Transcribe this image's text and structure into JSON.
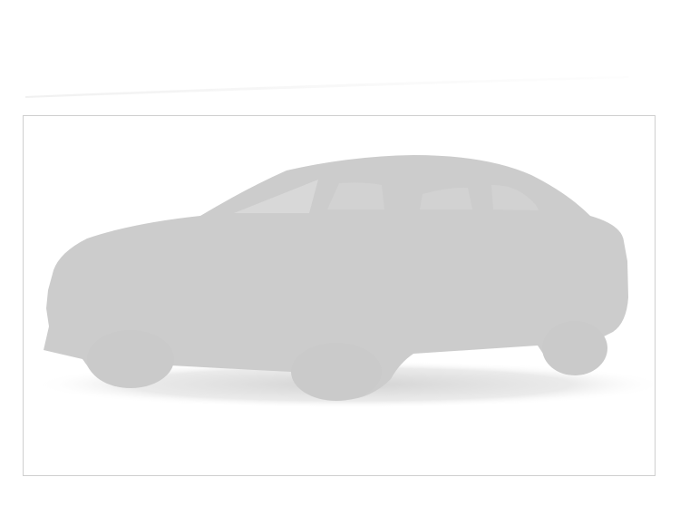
{
  "vehicle_image": {
    "kind": "placeholder-silhouette",
    "subject": "car-silhouette-icon",
    "colors": {
      "body": "#cccccc",
      "glass": "#d8d8d8",
      "shadow": "#d4d4d4",
      "frame_border": "#cfcfcf",
      "background": "#ffffff"
    }
  }
}
